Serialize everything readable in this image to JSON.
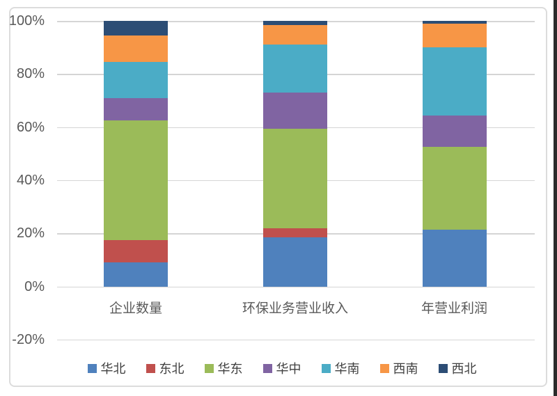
{
  "chart_data": {
    "type": "bar",
    "subtype": "stacked-100-percent-column",
    "title": "",
    "xlabel": "",
    "ylabel": "",
    "categories": [
      "企业数量",
      "环保业务营业收入",
      "年营业利润"
    ],
    "series": [
      {
        "name": "华北",
        "color": "#4F81BD",
        "values": [
          9,
          18.5,
          21.5
        ]
      },
      {
        "name": "东北",
        "color": "#C0504D",
        "values": [
          8.5,
          3.5,
          0
        ]
      },
      {
        "name": "华东",
        "color": "#9BBB59",
        "values": [
          45,
          37.5,
          31
        ]
      },
      {
        "name": "华中",
        "color": "#8064A2",
        "values": [
          8.5,
          13.5,
          12
        ]
      },
      {
        "name": "华南",
        "color": "#4BACC6",
        "values": [
          13.5,
          18,
          25.5
        ]
      },
      {
        "name": "西南",
        "color": "#F79646",
        "values": [
          10,
          7.5,
          9
        ]
      },
      {
        "name": "西北",
        "color": "#2C4D75",
        "values": [
          5.5,
          1.5,
          1
        ]
      }
    ],
    "y_axis": {
      "ticks": [
        "100%",
        "80%",
        "60%",
        "40%",
        "20%",
        "0%",
        "-20%"
      ],
      "max": 100,
      "min": -20,
      "grid": true
    },
    "legend_position": "bottom",
    "units": "percent-of-total"
  },
  "colors": {
    "background": "#FFFFFF",
    "frame_border": "#DCDCDC",
    "gridline": "#D5D5D5",
    "axis_label": "#595959",
    "legend_label": "#404040",
    "right_edge_strip": "#2B2B2B"
  }
}
